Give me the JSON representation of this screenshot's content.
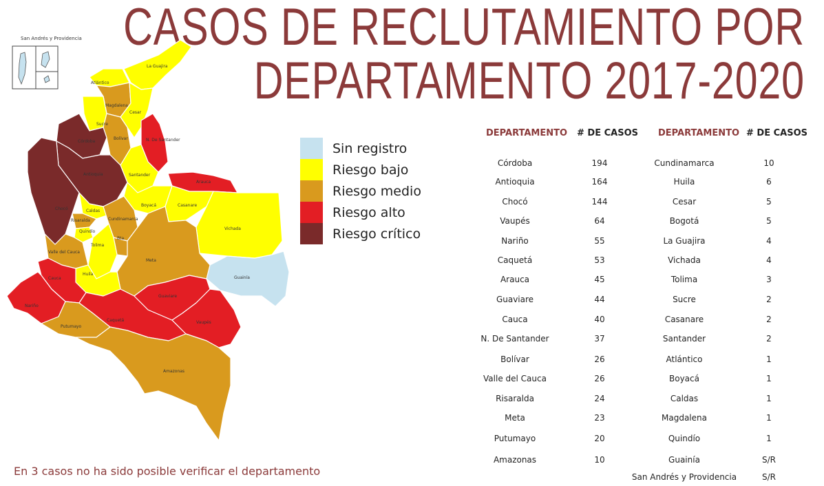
{
  "title": {
    "line1": "CASOS DE RECLUTAMIENTO POR",
    "line2": "DEPARTAMENTO 2017-2020"
  },
  "legend": [
    {
      "label": "Sin registro",
      "color": "#c6e2ef"
    },
    {
      "label": "Riesgo bajo",
      "color": "#ffff00"
    },
    {
      "label": "Riesgo medio",
      "color": "#d99a1e"
    },
    {
      "label": "Riesgo alto",
      "color": "#e31e24"
    },
    {
      "label": "Riesgo crítico",
      "color": "#7a2a2a"
    }
  ],
  "note": "En 3 casos no ha sido posible verificar el departamento",
  "inset_label": "San Andrés y Providencia",
  "table": {
    "header_dep": "DEPARTAMENTO",
    "header_cases": "# DE CASOS",
    "left": [
      {
        "dep": "Córdoba",
        "cases": "194"
      },
      {
        "dep": "Antioquia",
        "cases": "164"
      },
      {
        "dep": "Chocó",
        "cases": "144"
      },
      {
        "dep": "Vaupés",
        "cases": "64"
      },
      {
        "dep": "Nariño",
        "cases": "55"
      },
      {
        "dep": "Caquetá",
        "cases": "53"
      },
      {
        "dep": "Arauca",
        "cases": "45"
      },
      {
        "dep": "Guaviare",
        "cases": "44"
      },
      {
        "dep": "Cauca",
        "cases": "40"
      },
      {
        "dep": "N. De Santander",
        "cases": "37"
      },
      {
        "dep": "Bolívar",
        "cases": "26"
      },
      {
        "dep": "Valle del Cauca",
        "cases": "26"
      },
      {
        "dep": "Risaralda",
        "cases": "24"
      },
      {
        "dep": "Meta",
        "cases": "23"
      },
      {
        "dep": "Putumayo",
        "cases": "20"
      },
      {
        "dep": "Amazonas",
        "cases": "10"
      }
    ],
    "right": [
      {
        "dep": "Cundinamarca",
        "cases": "10"
      },
      {
        "dep": "Huila",
        "cases": "6"
      },
      {
        "dep": "Cesar",
        "cases": "5"
      },
      {
        "dep": "Bogotá",
        "cases": "5"
      },
      {
        "dep": "La Guajira",
        "cases": "4"
      },
      {
        "dep": "Vichada",
        "cases": "4"
      },
      {
        "dep": "Tolima",
        "cases": "3"
      },
      {
        "dep": "Sucre",
        "cases": "2"
      },
      {
        "dep": "Casanare",
        "cases": "2"
      },
      {
        "dep": "Santander",
        "cases": "2"
      },
      {
        "dep": "Atlántico",
        "cases": "1"
      },
      {
        "dep": "Boyacá",
        "cases": "1"
      },
      {
        "dep": "Caldas",
        "cases": "1"
      },
      {
        "dep": "Magdalena",
        "cases": "1"
      },
      {
        "dep": "Quindío",
        "cases": "1"
      },
      {
        "dep": "Guainía",
        "cases": "S/R"
      },
      {
        "dep": "San Andrés y Providencia",
        "cases": "S/R"
      }
    ]
  },
  "map_labels": {
    "la_guajira": "La Guajira",
    "atlantico": "Atlántico",
    "magdalena": "Magdalena",
    "cesar": "Cesar",
    "sucre": "Sucre",
    "cordoba": "Córdoba",
    "bolivar": "Bolívar",
    "n_santander": "N. De Santander",
    "antioquia": "Antioquia",
    "santander": "Santander",
    "arauca": "Arauca",
    "choco": "Chocó",
    "caldas": "Caldas",
    "boyaca": "Boyacá",
    "casanare": "Casanare",
    "risaralda": "Risaralda",
    "cundinamarca": "Cundinamarca",
    "quindio": "Quindío",
    "vichada": "Vichada",
    "bogota": "Bta.",
    "valle": "Valle del Cauca",
    "tolima": "Tolima",
    "meta": "Meta",
    "guainia": "Guainía",
    "huila": "Huila",
    "cauca": "Cauca",
    "guaviare": "Guaviare",
    "narino": "Nariño",
    "putumayo": "Putumayo",
    "caqueta": "Caquetá",
    "vaupes": "Vaupés",
    "amazonas": "Amazonas"
  }
}
